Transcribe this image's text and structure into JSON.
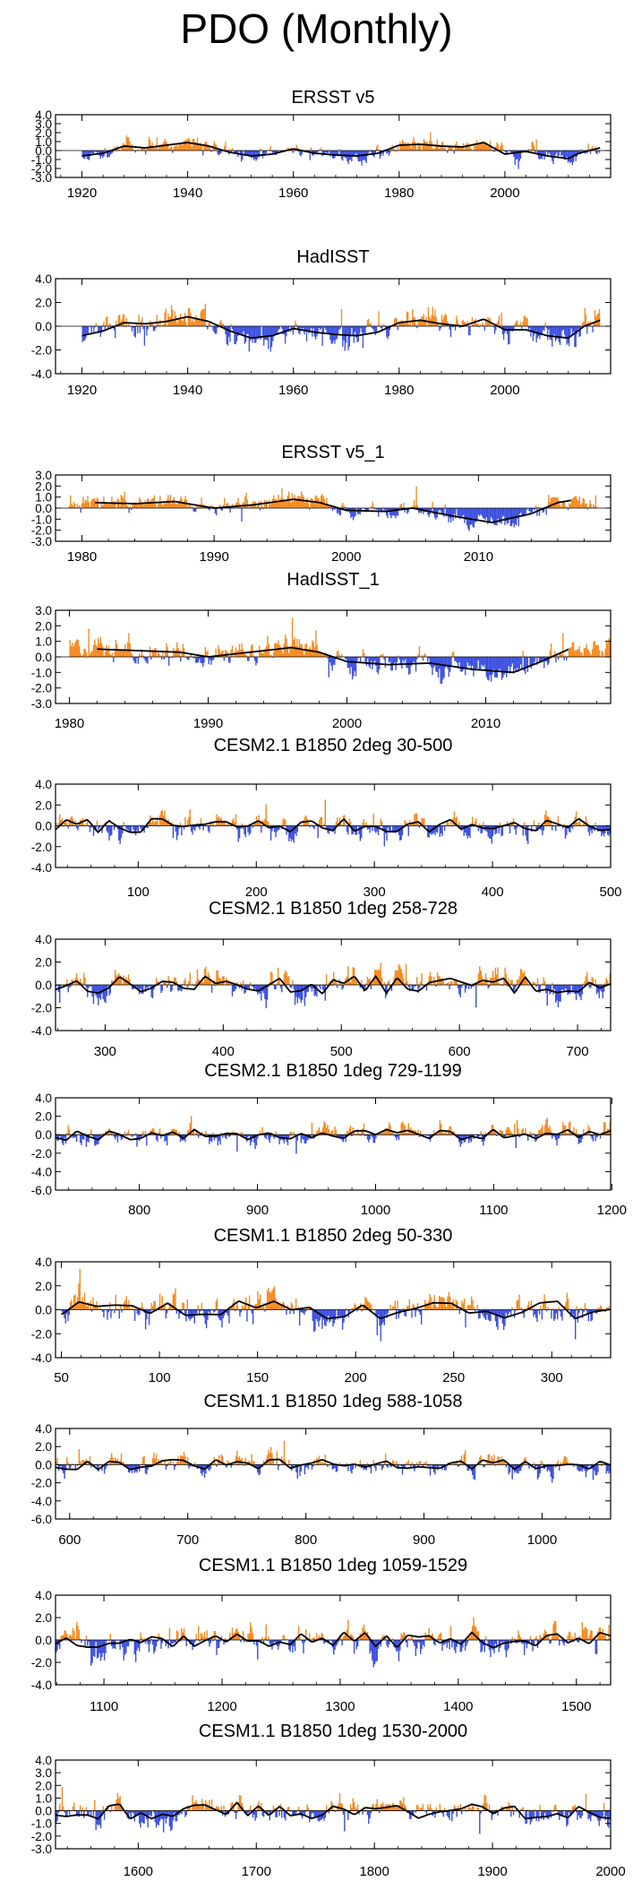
{
  "title": "PDO (Monthly)",
  "colors": {
    "positive": "#f58a1f",
    "negative": "#3b4fe0",
    "smooth": "#000000"
  },
  "chart_data": [
    {
      "type": "bar",
      "title": "ERSST v5",
      "xlim": [
        1915,
        2020
      ],
      "ylim": [
        -3.0,
        4.0
      ],
      "xticks": [
        1920,
        1940,
        1960,
        1980,
        2000
      ],
      "yticks": [
        4.0,
        3.0,
        2.0,
        1.0,
        0.0,
        -1.0,
        -2.0,
        -3.0
      ],
      "x_start": 1920,
      "x_end": 2018,
      "amplitude": 1.0,
      "seed": 11,
      "smooth_points": [
        [
          1920,
          -0.6
        ],
        [
          1924,
          -0.3
        ],
        [
          1928,
          0.5
        ],
        [
          1932,
          0.3
        ],
        [
          1936,
          0.6
        ],
        [
          1940,
          0.9
        ],
        [
          1944,
          0.5
        ],
        [
          1948,
          -0.2
        ],
        [
          1952,
          -0.6
        ],
        [
          1956,
          -0.4
        ],
        [
          1960,
          0.2
        ],
        [
          1964,
          -0.3
        ],
        [
          1968,
          -0.5
        ],
        [
          1972,
          -0.6
        ],
        [
          1976,
          -0.3
        ],
        [
          1980,
          0.6
        ],
        [
          1984,
          0.7
        ],
        [
          1988,
          0.5
        ],
        [
          1992,
          0.4
        ],
        [
          1996,
          0.9
        ],
        [
          2000,
          -0.4
        ],
        [
          2004,
          -0.1
        ],
        [
          2008,
          -0.6
        ],
        [
          2012,
          -0.9
        ],
        [
          2014,
          -0.3
        ],
        [
          2018,
          0.3
        ]
      ]
    },
    {
      "type": "bar",
      "title": "HadISST",
      "xlim": [
        1915,
        2020
      ],
      "ylim": [
        -4.0,
        4.0
      ],
      "xticks": [
        1920,
        1940,
        1960,
        1980,
        2000
      ],
      "yticks": [
        4.0,
        2.0,
        0.0,
        -2.0,
        -4.0
      ],
      "x_start": 1920,
      "x_end": 2018,
      "amplitude": 1.2,
      "seed": 23,
      "smooth_points": [
        [
          1920,
          -0.8
        ],
        [
          1924,
          -0.4
        ],
        [
          1928,
          0.3
        ],
        [
          1932,
          0.2
        ],
        [
          1936,
          0.4
        ],
        [
          1940,
          0.8
        ],
        [
          1944,
          0.4
        ],
        [
          1948,
          -0.4
        ],
        [
          1952,
          -1.0
        ],
        [
          1956,
          -0.8
        ],
        [
          1960,
          -0.2
        ],
        [
          1964,
          -0.5
        ],
        [
          1968,
          -0.7
        ],
        [
          1972,
          -0.8
        ],
        [
          1976,
          -0.5
        ],
        [
          1980,
          0.3
        ],
        [
          1984,
          0.5
        ],
        [
          1988,
          0.2
        ],
        [
          1992,
          0.0
        ],
        [
          1996,
          0.6
        ],
        [
          2000,
          -0.3
        ],
        [
          2004,
          -0.3
        ],
        [
          2008,
          -0.8
        ],
        [
          2012,
          -1.0
        ],
        [
          2015,
          0.0
        ],
        [
          2018,
          0.5
        ]
      ]
    },
    {
      "type": "bar",
      "title": "ERSST v5_1",
      "xlim": [
        1978,
        2020
      ],
      "ylim": [
        -3.0,
        3.0
      ],
      "xticks": [
        1980,
        1990,
        2000,
        2010
      ],
      "yticks": [
        3.0,
        2.0,
        1.0,
        0.0,
        -1.0,
        -2.0,
        -3.0
      ],
      "x_start": 1979,
      "x_end": 2019,
      "amplitude": 0.9,
      "seed": 37,
      "smooth_points": [
        [
          1981,
          0.5
        ],
        [
          1984,
          0.4
        ],
        [
          1987,
          0.6
        ],
        [
          1990,
          0.0
        ],
        [
          1993,
          0.3
        ],
        [
          1996,
          0.8
        ],
        [
          1998,
          0.5
        ],
        [
          2000,
          -0.2
        ],
        [
          2003,
          -0.3
        ],
        [
          2005,
          0.0
        ],
        [
          2008,
          -0.7
        ],
        [
          2011,
          -1.3
        ],
        [
          2014,
          -0.5
        ],
        [
          2016,
          0.5
        ],
        [
          2017,
          0.7
        ]
      ]
    },
    {
      "type": "bar",
      "title": "HadISST_1",
      "xlim": [
        1979,
        2019
      ],
      "ylim": [
        -3.0,
        3.0
      ],
      "xticks": [
        1980,
        1990,
        2000,
        2010
      ],
      "yticks": [
        3.0,
        2.0,
        1.0,
        0.0,
        -1.0,
        -2.0,
        -3.0
      ],
      "x_start": 1980,
      "x_end": 2019,
      "amplitude": 0.9,
      "seed": 41,
      "smooth_points": [
        [
          1982,
          0.5
        ],
        [
          1985,
          0.4
        ],
        [
          1988,
          0.3
        ],
        [
          1990,
          0.0
        ],
        [
          1993,
          0.3
        ],
        [
          1996,
          0.6
        ],
        [
          1998,
          0.3
        ],
        [
          2000,
          -0.3
        ],
        [
          2003,
          -0.5
        ],
        [
          2006,
          -0.4
        ],
        [
          2009,
          -0.8
        ],
        [
          2012,
          -1.0
        ],
        [
          2014,
          -0.3
        ],
        [
          2016,
          0.5
        ]
      ]
    },
    {
      "type": "bar",
      "title": "CESM2.1 B1850 2deg 30-500",
      "xlim": [
        30,
        500
      ],
      "ylim": [
        -4.0,
        4.0
      ],
      "xticks": [
        100,
        200,
        300,
        400,
        500
      ],
      "yticks": [
        4.0,
        2.0,
        0.0,
        -2.0,
        -4.0
      ],
      "x_start": 30,
      "x_end": 500,
      "amplitude": 1.4,
      "seed": 53,
      "smooth_seed": 7,
      "smooth_amp": 0.7
    },
    {
      "type": "bar",
      "title": "CESM2.1 B1850 1deg 258-728",
      "xlim": [
        258,
        728
      ],
      "ylim": [
        -4.0,
        4.0
      ],
      "xticks": [
        300,
        400,
        500,
        600,
        700
      ],
      "yticks": [
        4.0,
        2.0,
        0.0,
        -2.0,
        -4.0
      ],
      "x_start": 258,
      "x_end": 728,
      "amplitude": 1.4,
      "seed": 61,
      "smooth_seed": 13,
      "smooth_amp": 0.8
    },
    {
      "type": "bar",
      "title": "CESM2.1 B1850 1deg 729-1199",
      "xlim": [
        729,
        1199
      ],
      "ylim": [
        -6.0,
        4.0
      ],
      "xticks": [
        800,
        900,
        1000,
        1100,
        1200
      ],
      "yticks": [
        4.0,
        2.0,
        0.0,
        -2.0,
        -4.0,
        -6.0
      ],
      "x_start": 729,
      "x_end": 1199,
      "amplitude": 1.3,
      "seed": 71,
      "smooth_seed": 19,
      "smooth_amp": 0.6
    },
    {
      "type": "bar",
      "title": "CESM1.1 B1850 2deg 50-330",
      "xlim": [
        47,
        330
      ],
      "ylim": [
        -4.0,
        4.0
      ],
      "xticks": [
        50,
        100,
        150,
        200,
        250,
        300
      ],
      "yticks": [
        4.0,
        2.0,
        0.0,
        -2.0,
        -4.0
      ],
      "x_start": 50,
      "x_end": 330,
      "amplitude": 1.4,
      "seed": 83,
      "smooth_seed": 29,
      "smooth_amp": 0.8
    },
    {
      "type": "bar",
      "title": "CESM1.1 B1850 1deg 588-1058",
      "xlim": [
        588,
        1058
      ],
      "ylim": [
        -6.0,
        4.0
      ],
      "xticks": [
        600,
        700,
        800,
        900,
        1000
      ],
      "yticks": [
        4.0,
        2.0,
        0.0,
        -2.0,
        -4.0,
        -6.0
      ],
      "x_start": 588,
      "x_end": 1058,
      "amplitude": 1.3,
      "seed": 97,
      "smooth_seed": 31,
      "smooth_amp": 0.6
    },
    {
      "type": "bar",
      "title": "CESM1.1 B1850 1deg 1059-1529",
      "xlim": [
        1059,
        1529
      ],
      "ylim": [
        -4.0,
        4.0
      ],
      "xticks": [
        1100,
        1200,
        1300,
        1400,
        1500
      ],
      "yticks": [
        4.0,
        2.0,
        0.0,
        -2.0,
        -4.0
      ],
      "x_start": 1059,
      "x_end": 1529,
      "amplitude": 1.4,
      "seed": 101,
      "smooth_seed": 37,
      "smooth_amp": 0.7
    },
    {
      "type": "bar",
      "title": "CESM1.1 B1850 1deg 1530-2000",
      "xlim": [
        1530,
        2000
      ],
      "ylim": [
        -3.0,
        4.0
      ],
      "xticks": [
        1600,
        1700,
        1800,
        1900,
        2000
      ],
      "yticks": [
        4.0,
        3.0,
        2.0,
        1.0,
        0.0,
        -1.0,
        -2.0,
        -3.0
      ],
      "x_start": 1530,
      "x_end": 2000,
      "amplitude": 1.1,
      "seed": 113,
      "smooth_seed": 43,
      "smooth_amp": 0.7
    }
  ]
}
